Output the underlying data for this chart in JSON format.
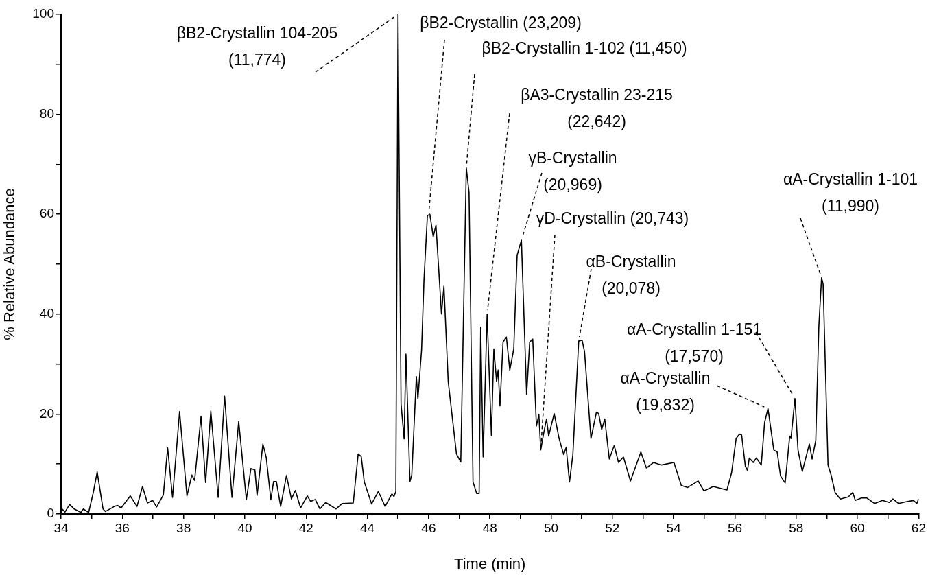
{
  "chart_data": {
    "type": "line",
    "xlabel": "Time (min)",
    "ylabel": "% Relative Abundance",
    "marker": "none",
    "line_style": "solid",
    "xlim": [
      34,
      62
    ],
    "xticks": [
      34,
      {
        "value": 35,
        "label": null
      },
      36,
      {
        "value": 37,
        "label": null
      },
      38,
      {
        "value": 39,
        "label": null
      },
      40,
      {
        "value": 41,
        "label": null
      },
      42,
      {
        "value": 43,
        "label": null
      },
      44,
      {
        "value": 45,
        "label": null
      },
      46,
      {
        "value": 47,
        "label": null
      },
      48,
      {
        "value": 49,
        "label": null
      },
      50,
      {
        "value": 51,
        "label": null
      },
      52,
      {
        "value": 53,
        "label": null
      },
      54,
      {
        "value": 55,
        "label": null
      },
      56,
      {
        "value": 57,
        "label": null
      },
      58,
      {
        "value": 59,
        "label": null
      },
      60,
      {
        "value": 61,
        "label": null
      },
      62
    ],
    "ylim": [
      0,
      100
    ],
    "yticks": [
      0,
      {
        "value": 10,
        "label": null
      },
      20,
      {
        "value": 30,
        "label": null
      },
      40,
      {
        "value": 50,
        "label": null
      },
      60,
      {
        "value": 70,
        "label": null
      },
      80,
      {
        "value": 90,
        "label": null
      },
      100
    ],
    "x": [
      34.0,
      34.13,
      34.28,
      34.43,
      34.65,
      34.73,
      34.9,
      35.05,
      35.18,
      35.37,
      35.45,
      35.74,
      35.85,
      35.96,
      36.26,
      36.48,
      36.66,
      36.82,
      36.99,
      37.12,
      37.34,
      37.48,
      37.64,
      37.87,
      38.11,
      38.27,
      38.36,
      38.57,
      38.72,
      38.89,
      39.13,
      39.34,
      39.58,
      39.8,
      40.05,
      40.2,
      40.33,
      40.4,
      40.59,
      40.7,
      40.85,
      40.94,
      41.03,
      41.17,
      41.36,
      41.52,
      41.65,
      41.82,
      42.04,
      42.15,
      42.3,
      42.45,
      42.64,
      42.98,
      43.18,
      43.54,
      43.7,
      43.8,
      43.9,
      44.14,
      44.36,
      44.58,
      44.8,
      44.87,
      44.93,
      45.0,
      45.1,
      45.2,
      45.26,
      45.39,
      45.45,
      45.6,
      45.65,
      45.77,
      45.85,
      45.96,
      46.04,
      46.15,
      46.24,
      46.37,
      46.42,
      46.5,
      46.64,
      46.91,
      47.05,
      47.23,
      47.32,
      47.45,
      47.57,
      47.65,
      47.7,
      47.78,
      47.91,
      48.05,
      48.13,
      48.22,
      48.27,
      48.33,
      48.43,
      48.54,
      48.65,
      48.78,
      48.89,
      49.03,
      49.2,
      49.3,
      49.4,
      49.52,
      49.6,
      49.66,
      49.74,
      49.85,
      49.92,
      50.1,
      50.26,
      50.41,
      50.49,
      50.6,
      50.71,
      50.9,
      51.01,
      51.09,
      51.3,
      51.48,
      51.55,
      51.65,
      51.75,
      51.9,
      52.06,
      52.2,
      52.36,
      52.59,
      52.93,
      53.11,
      53.34,
      53.6,
      54.01,
      54.25,
      54.46,
      54.8,
      54.99,
      55.29,
      55.74,
      55.89,
      56.04,
      56.15,
      56.22,
      56.34,
      56.41,
      56.47,
      56.6,
      56.7,
      56.86,
      56.97,
      57.08,
      57.27,
      57.38,
      57.49,
      57.64,
      57.79,
      57.83,
      57.96,
      58.06,
      58.2,
      58.43,
      58.52,
      58.64,
      58.74,
      58.83,
      58.88,
      59.04,
      59.14,
      59.27,
      59.44,
      59.7,
      59.85,
      59.93,
      60.13,
      60.3,
      60.56,
      60.82,
      61.04,
      61.16,
      61.34,
      61.64,
      61.83,
      61.94,
      62.0
    ],
    "series": [
      {
        "color": "#000000",
        "values": [
          1.2,
          0.4,
          1.9,
          1.0,
          0.3,
          1.0,
          0.3,
          4.2,
          8.4,
          1.0,
          0.5,
          1.5,
          1.7,
          1.2,
          3.6,
          1.5,
          5.5,
          2.2,
          2.7,
          1.4,
          3.8,
          13.2,
          3.3,
          20.5,
          3.6,
          7.8,
          6.7,
          19.5,
          6.3,
          20.6,
          3.3,
          23.6,
          3.3,
          18.5,
          2.9,
          9.1,
          8.8,
          3.7,
          14,
          11.3,
          2.9,
          6.5,
          6.5,
          1.5,
          7.7,
          3.0,
          4.7,
          1.2,
          3.6,
          2.5,
          2.9,
          1.0,
          2.3,
          1.0,
          2.1,
          2.2,
          12,
          11.5,
          6.4,
          2.0,
          4.5,
          1.5,
          4,
          3.5,
          4.5,
          100,
          22,
          15,
          32,
          6.5,
          7.8,
          27.5,
          23,
          32.8,
          47,
          59.7,
          60,
          55.5,
          57.8,
          45,
          40,
          45.6,
          26.5,
          12,
          10.4,
          69.3,
          64.3,
          6.4,
          4.1,
          4.1,
          37.4,
          11.4,
          40,
          15.7,
          33,
          26.5,
          28.8,
          21.6,
          34.4,
          35.4,
          28.8,
          33,
          51.8,
          54.8,
          23.9,
          34.4,
          35,
          17.6,
          19.9,
          12.8,
          15.6,
          19,
          15.6,
          20.1,
          15.1,
          11.9,
          13.3,
          6.4,
          11.9,
          34.6,
          34.8,
          32.5,
          15.1,
          20.4,
          20.1,
          16.9,
          19,
          11,
          13.7,
          10.3,
          11.4,
          6.6,
          12.4,
          9.2,
          10.3,
          9.8,
          10.3,
          5.7,
          5.3,
          6.6,
          4.6,
          5.5,
          4.8,
          8.2,
          15.1,
          16,
          15.8,
          9.6,
          8.7,
          11.2,
          10.3,
          11.2,
          9.8,
          18.3,
          21.1,
          12.8,
          12.4,
          7.6,
          6.2,
          15.6,
          15.1,
          23.1,
          12.8,
          8.5,
          14,
          11,
          14.7,
          37.5,
          47.3,
          46,
          9.8,
          7.8,
          4.3,
          3,
          3.4,
          4.3,
          2.7,
          3.2,
          3.2,
          2.1,
          2.7,
          2.3,
          3,
          2.1,
          2.5,
          2.7,
          2.1,
          3
        ]
      }
    ],
    "annotations": [
      {
        "text": "βB2-Crystallin 104-205\n(11,774)",
        "x": 45.0,
        "y": 100
      },
      {
        "text": "βB2-Crystallin (23,209)",
        "x": 46.0,
        "y": 60
      },
      {
        "text": "βB2-Crystallin 1-102 (11,450)",
        "x": 47.23,
        "y": 69.3
      },
      {
        "text": "βA3-Crystallin 23-215\n(22,642)",
        "x": 47.91,
        "y": 40
      },
      {
        "text": "γB-Crystallin\n(20,969)",
        "x": 49.03,
        "y": 54.8
      },
      {
        "text": "γD-Crystallin (20,743)",
        "x": 49.66,
        "y": 12.8
      },
      {
        "text": "αB-Crystallin\n(20,078)",
        "x": 50.9,
        "y": 34.6
      },
      {
        "text": "αA-Crystallin 1-101\n(11,990)",
        "x": 58.83,
        "y": 47.3
      },
      {
        "text": "αA-Crystallin 1-151\n(17,570)",
        "x": 57.96,
        "y": 23.1
      },
      {
        "text": "αA-Crystallin\n(19,832)",
        "x": 57.08,
        "y": 21.1
      }
    ]
  }
}
